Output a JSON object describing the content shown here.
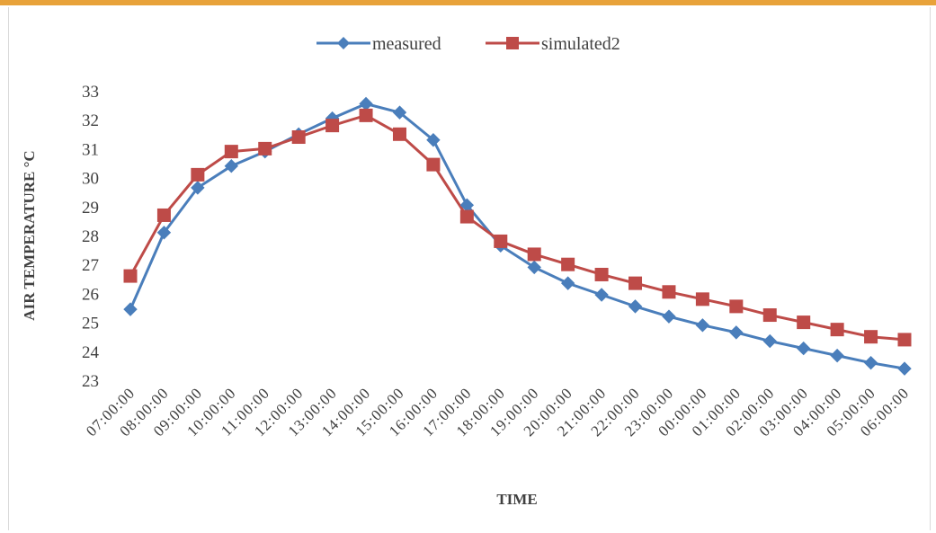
{
  "chart_data": {
    "type": "line",
    "title": "",
    "xlabel": "TIME",
    "ylabel": "AIR TEMPERATURE °C",
    "ylim": [
      23,
      33
    ],
    "yticks": [
      23,
      24,
      25,
      26,
      27,
      28,
      29,
      30,
      31,
      32,
      33
    ],
    "grid": false,
    "legend_position": "top-center",
    "categories": [
      "07:00:00",
      "08:00:00",
      "09:00:00",
      "10:00:00",
      "11:00:00",
      "12:00:00",
      "13:00:00",
      "14:00:00",
      "15:00:00",
      "16:00:00",
      "17:00:00",
      "18:00:00",
      "19:00:00",
      "20:00:00",
      "21:00:00",
      "22:00:00",
      "23:00:00",
      "00:00:00",
      "01:00:00",
      "02:00:00",
      "03:00:00",
      "04:00:00",
      "05:00:00",
      "06:00:00"
    ],
    "series": [
      {
        "name": "measured",
        "color": "#4a7ebb",
        "marker": "diamond",
        "values": [
          25.45,
          28.1,
          29.65,
          30.4,
          30.9,
          31.5,
          32.05,
          32.55,
          32.25,
          31.3,
          29.05,
          27.65,
          26.9,
          26.35,
          25.95,
          25.55,
          25.2,
          24.9,
          24.65,
          24.35,
          24.1,
          23.85,
          23.6,
          23.4
        ]
      },
      {
        "name": "simulated2",
        "color": "#be4b48",
        "marker": "square",
        "values": [
          26.6,
          28.7,
          30.1,
          30.9,
          31.0,
          31.4,
          31.8,
          32.15,
          31.5,
          30.45,
          28.65,
          27.8,
          27.35,
          27.0,
          26.65,
          26.35,
          26.05,
          25.8,
          25.55,
          25.25,
          25.0,
          24.75,
          24.5,
          24.4
        ]
      }
    ]
  }
}
